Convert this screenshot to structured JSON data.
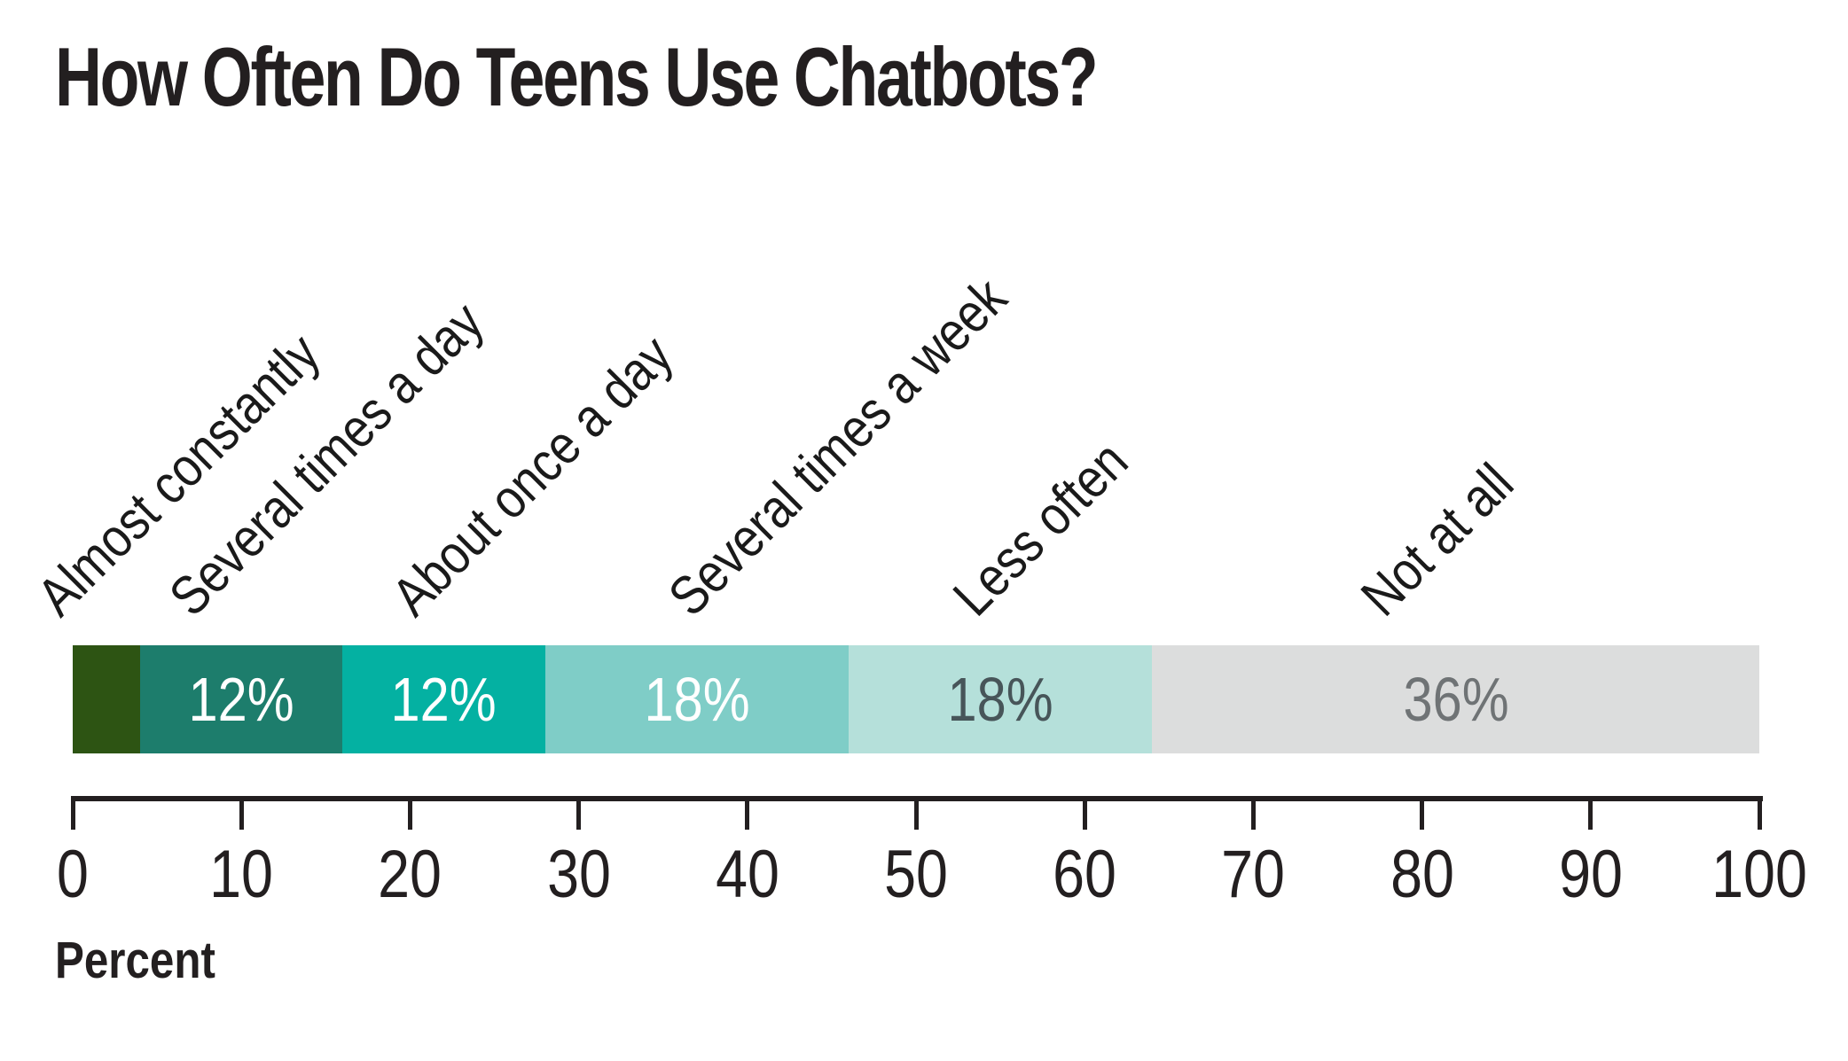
{
  "title": "How Often Do Teens Use Chatbots?",
  "chart_data": {
    "type": "bar",
    "orientation": "horizontal-stacked",
    "title": "How Often Do Teens Use Chatbots?",
    "xlabel": "Percent",
    "xlim": [
      0,
      100
    ],
    "x_ticks": [
      0,
      10,
      20,
      30,
      40,
      50,
      60,
      70,
      80,
      90,
      100
    ],
    "grid": false,
    "legend": "rotated-labels-above-segments",
    "categories": [
      "Almost constantly",
      "Several times a day",
      "About once a day",
      "Several times a week",
      "Less often",
      "Not at all"
    ],
    "values": [
      4,
      12,
      12,
      18,
      18,
      36
    ],
    "value_labels": [
      "",
      "12%",
      "12%",
      "18%",
      "18%",
      "36%"
    ],
    "segment_colors": [
      "#2d5413",
      "#1d7d6c",
      "#04b1a2",
      "#7fcdc7",
      "#b5e0da",
      "#dcdddd"
    ],
    "value_label_colors": [
      "#ffffff",
      "#ffffff",
      "#ffffff",
      "#ffffff",
      "#475559",
      "#6f7375"
    ],
    "label_anchor_pct": [
      -0.3,
      7.5,
      20.7,
      37.1,
      54.0,
      78.2
    ],
    "text_color": "#231f20",
    "background": "#ffffff"
  }
}
